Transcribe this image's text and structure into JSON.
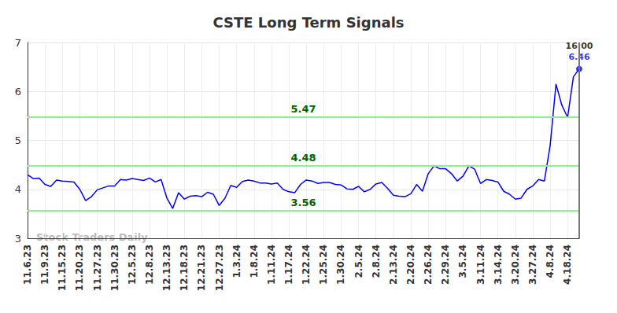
{
  "chart_data": {
    "type": "line",
    "title": "CSTE Long Term Signals",
    "categories": [
      "11.6.23",
      null,
      null,
      "11.9.23",
      null,
      null,
      "11.15.23",
      null,
      null,
      "11.20.23",
      null,
      null,
      "11.27.23",
      null,
      null,
      "11.30.23",
      null,
      null,
      "12.5.23",
      null,
      null,
      "12.8.23",
      null,
      null,
      "12.13.23",
      null,
      null,
      "12.18.23",
      null,
      null,
      "12.21.23",
      null,
      null,
      "12.27.23",
      null,
      null,
      "1.3.24",
      null,
      null,
      "1.8.24",
      null,
      null,
      "1.11.24",
      null,
      null,
      "1.17.24",
      null,
      null,
      "1.22.24",
      null,
      null,
      "1.25.24",
      null,
      null,
      "1.30.24",
      null,
      null,
      "2.5.24",
      null,
      null,
      "2.8.24",
      null,
      null,
      "2.13.24",
      null,
      null,
      "2.20.24",
      null,
      null,
      "2.26.24",
      null,
      null,
      "2.29.24",
      null,
      null,
      "3.5.24",
      null,
      null,
      "3.11.24",
      null,
      null,
      "3.14.24",
      null,
      null,
      "3.20.24",
      null,
      null,
      "3.27.24",
      null,
      null,
      "4.8.24",
      null,
      null,
      "4.18.24",
      null,
      null
    ],
    "values": [
      4.3,
      4.22,
      4.23,
      4.1,
      4.06,
      4.19,
      4.17,
      4.16,
      4.15,
      4.0,
      3.77,
      3.85,
      3.99,
      4.03,
      4.07,
      4.07,
      4.2,
      4.19,
      4.22,
      4.2,
      4.18,
      4.23,
      4.15,
      4.2,
      3.82,
      3.61,
      3.93,
      3.8,
      3.86,
      3.87,
      3.85,
      3.94,
      3.9,
      3.67,
      3.82,
      4.08,
      4.04,
      4.16,
      4.19,
      4.17,
      4.13,
      4.13,
      4.11,
      4.13,
      4.0,
      3.95,
      3.93,
      4.1,
      4.19,
      4.17,
      4.12,
      4.14,
      4.14,
      4.1,
      4.09,
      4.01,
      4.0,
      4.06,
      3.95,
      4.0,
      4.11,
      4.14,
      4.02,
      3.88,
      3.86,
      3.85,
      3.91,
      4.1,
      3.96,
      4.32,
      4.48,
      4.42,
      4.42,
      4.32,
      4.17,
      4.27,
      4.48,
      4.41,
      4.12,
      4.2,
      4.18,
      4.15,
      3.96,
      3.9,
      3.8,
      3.82,
      4.0,
      4.07,
      4.2,
      4.17,
      4.9,
      6.15,
      5.72,
      5.47,
      6.3,
      6.46
    ],
    "color": "#0000ff",
    "ylim": [
      3,
      7
    ],
    "yticks": [
      3,
      4,
      5,
      6,
      7
    ],
    "grid": true,
    "levels": [
      5.47,
      4.48,
      3.56
    ],
    "last_label": "16:00",
    "watermark": "Stock Traders Daily"
  }
}
